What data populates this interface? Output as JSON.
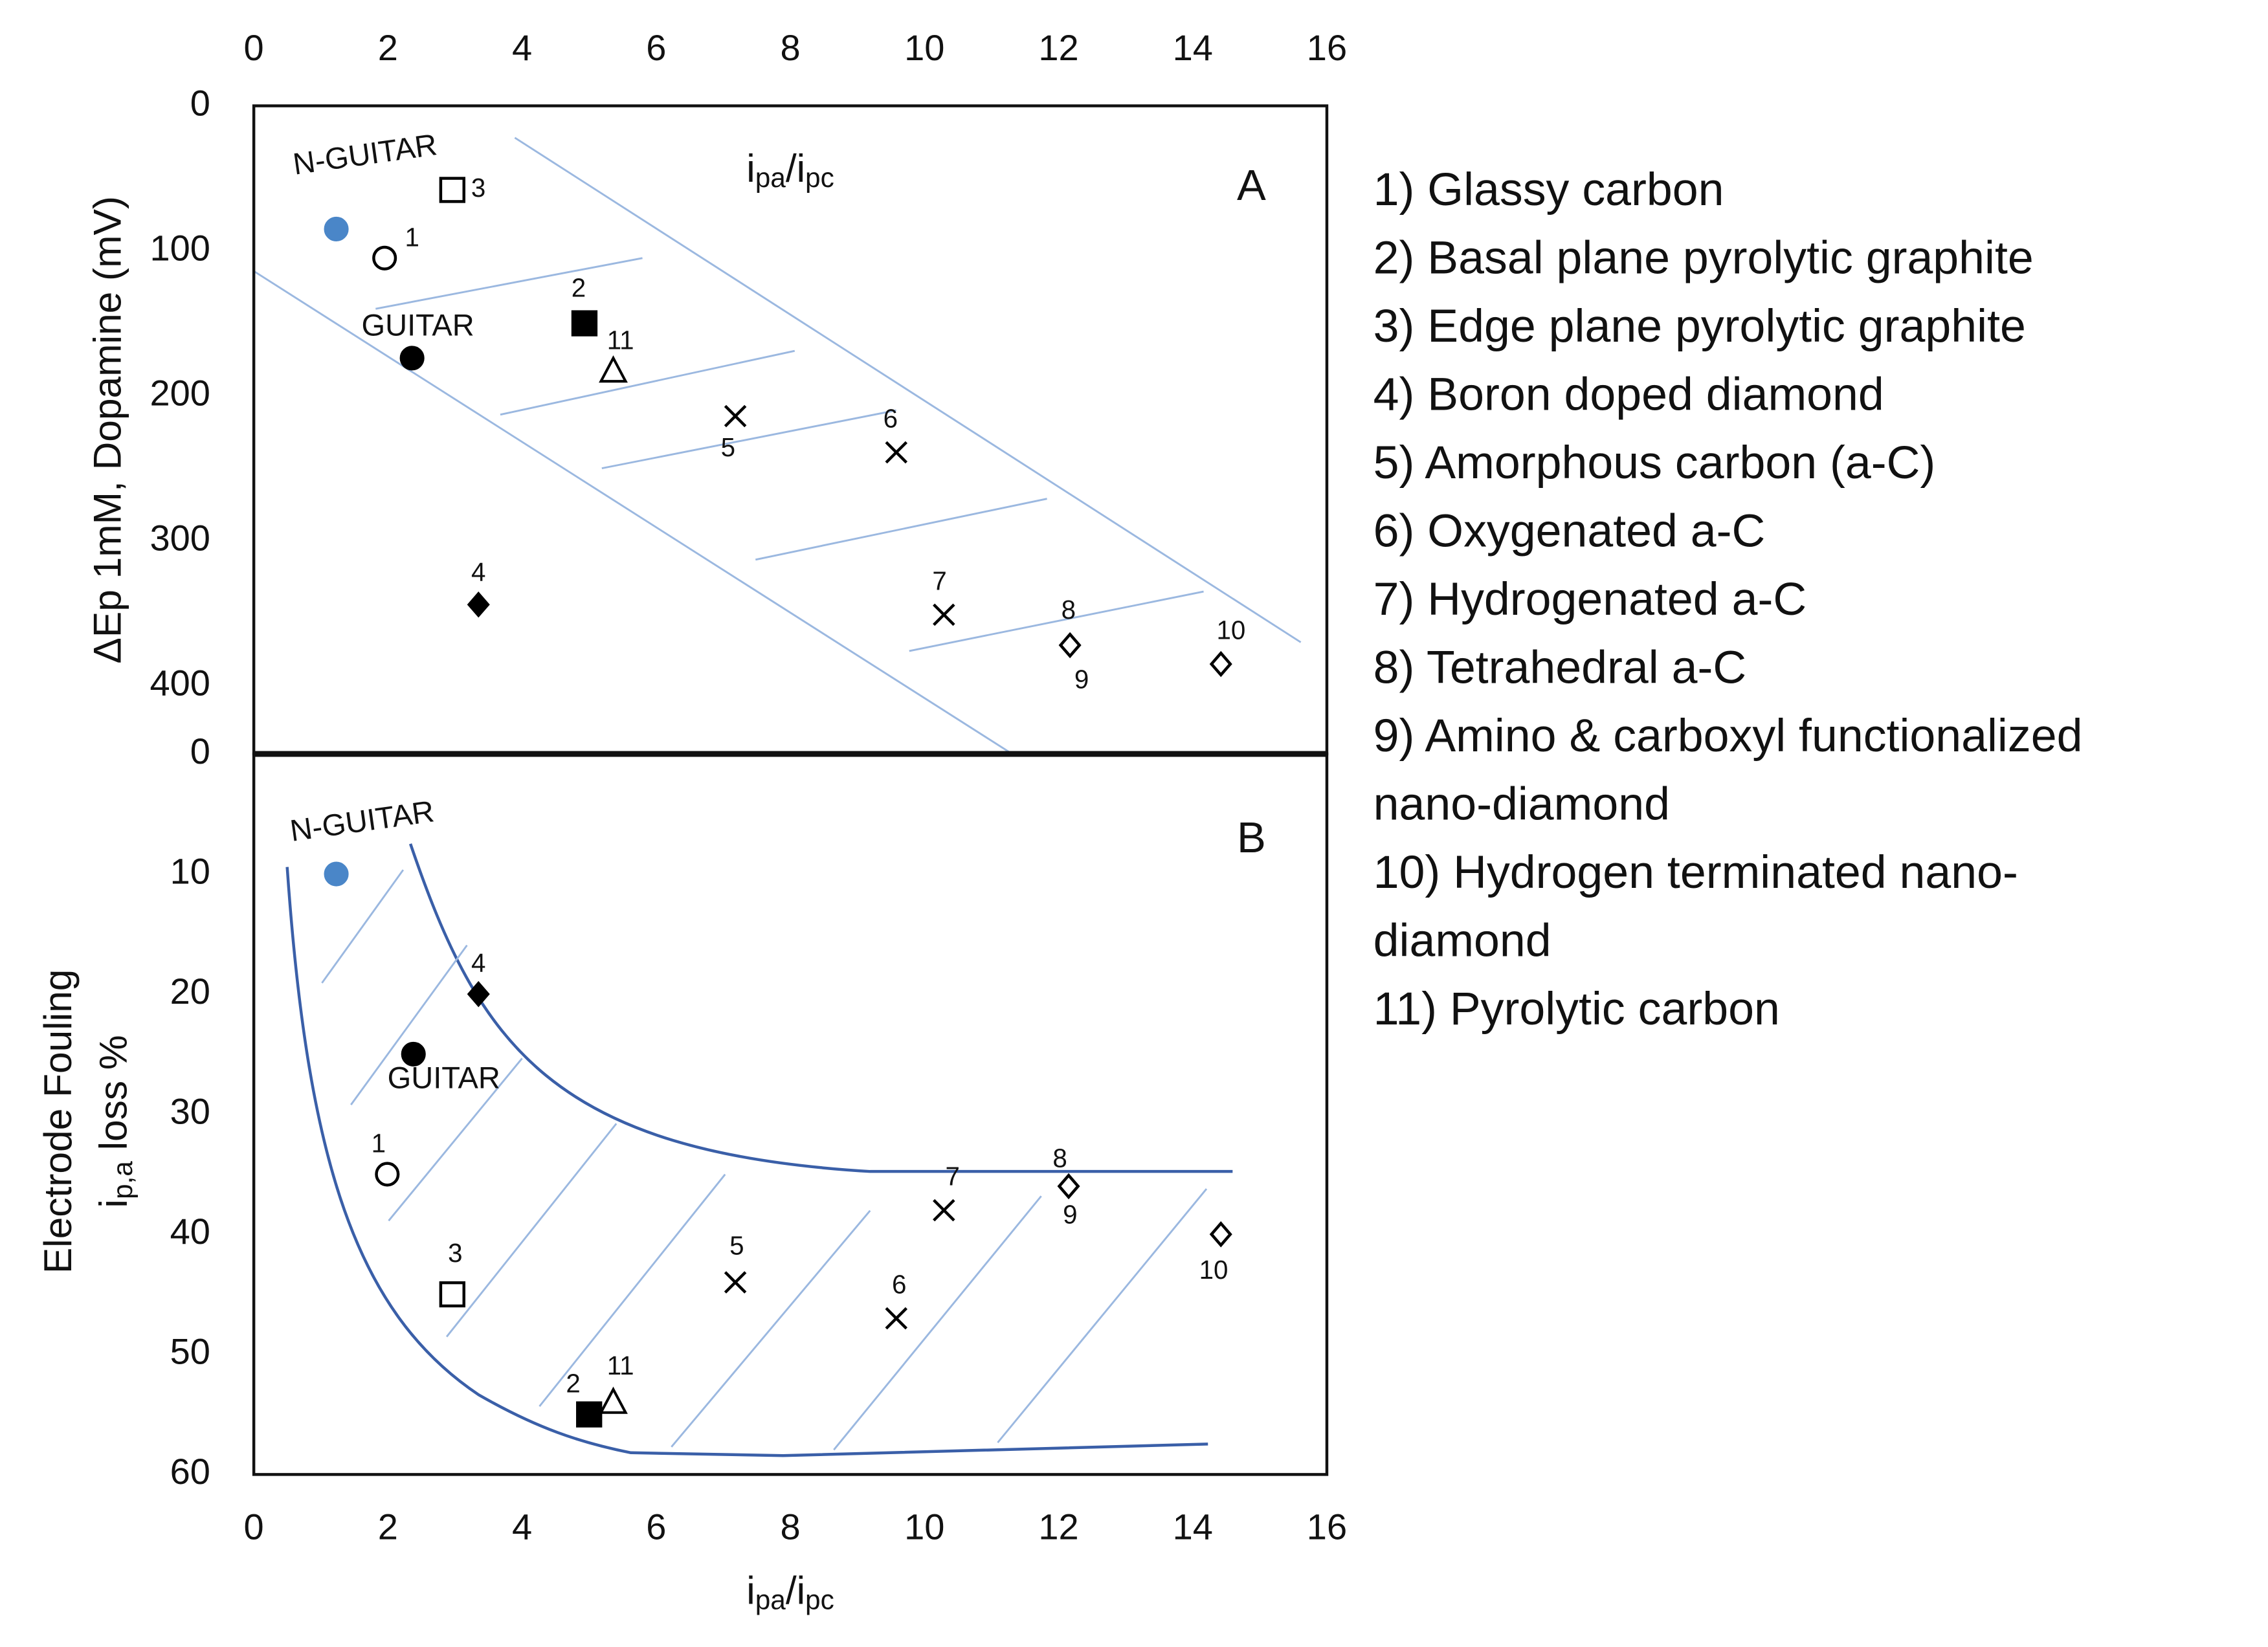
{
  "chart_data": [
    {
      "type": "scatter",
      "panel_label": "A",
      "x_axis_position": "top",
      "xlim": [
        0,
        16
      ],
      "xticks": [
        0,
        2,
        4,
        6,
        8,
        10,
        12,
        14,
        16
      ],
      "ylim": [
        0,
        447
      ],
      "yticks": [
        0,
        100,
        200,
        300,
        400
      ],
      "y_reversed": true,
      "y_label": "ΔEp 1mM, Dopamine (mV)",
      "annotation": [
        "i",
        "pa",
        "/i",
        "pc"
      ],
      "series": [
        {
          "labels": [
            "N-GUITAR"
          ],
          "marker": "circle",
          "filled": true,
          "color": "#4a86c8",
          "x": [
            1.23
          ],
          "values": [
            85
          ]
        },
        {
          "labels": [
            "1"
          ],
          "marker": "circle",
          "filled": false,
          "color": "#000000",
          "x": [
            1.95
          ],
          "values": [
            105
          ]
        },
        {
          "labels": [
            "3"
          ],
          "marker": "square",
          "filled": false,
          "color": "#000000",
          "x": [
            2.96
          ],
          "values": [
            58
          ]
        },
        {
          "labels": [
            "GUITAR"
          ],
          "marker": "circle",
          "filled": true,
          "color": "#000000",
          "x": [
            2.36
          ],
          "values": [
            174
          ]
        },
        {
          "labels": [
            "2"
          ],
          "marker": "square",
          "filled": true,
          "color": "#000000",
          "x": [
            4.93
          ],
          "values": [
            150
          ]
        },
        {
          "labels": [
            "11"
          ],
          "marker": "triangle",
          "filled": false,
          "color": "#000000",
          "x": [
            5.36
          ],
          "values": [
            183
          ]
        },
        {
          "labels": [
            "5"
          ],
          "marker": "cross",
          "filled": false,
          "color": "#000000",
          "x": [
            7.18
          ],
          "values": [
            214
          ]
        },
        {
          "labels": [
            "6"
          ],
          "marker": "cross",
          "filled": false,
          "color": "#000000",
          "x": [
            9.58
          ],
          "values": [
            239
          ]
        },
        {
          "labels": [
            "4"
          ],
          "marker": "diamond",
          "filled": true,
          "color": "#000000",
          "x": [
            3.35
          ],
          "values": [
            344
          ]
        },
        {
          "labels": [
            "7"
          ],
          "marker": "cross",
          "filled": false,
          "color": "#000000",
          "x": [
            10.29
          ],
          "values": [
            351
          ]
        },
        {
          "labels": [
            "8",
            "9"
          ],
          "marker": "diamond",
          "filled": false,
          "color": "#000000",
          "x": [
            12.17
          ],
          "values": [
            372
          ]
        },
        {
          "labels": [
            "10"
          ],
          "marker": "diamond",
          "filled": false,
          "color": "#000000",
          "x": [
            14.42
          ],
          "values": [
            385
          ]
        }
      ]
    },
    {
      "type": "scatter",
      "panel_label": "B",
      "x_axis_position": "bottom",
      "xlim": [
        0,
        16
      ],
      "xticks": [
        0,
        2,
        4,
        6,
        8,
        10,
        12,
        14,
        16
      ],
      "ylim": [
        0,
        60
      ],
      "yticks": [
        0,
        10,
        20,
        30,
        40,
        50,
        60
      ],
      "y_reversed": true,
      "y_label": [
        "Electrode Fouling",
        "i",
        "p,a",
        " loss %"
      ],
      "x_label": [
        "i",
        "pa",
        "/i",
        "pc"
      ],
      "series": [
        {
          "labels": [
            "N-GUITAR"
          ],
          "marker": "circle",
          "filled": true,
          "color": "#4a86c8",
          "x": [
            1.23
          ],
          "values": [
            10
          ]
        },
        {
          "labels": [
            "GUITAR"
          ],
          "marker": "circle",
          "filled": true,
          "color": "#000000",
          "x": [
            2.38
          ],
          "values": [
            25
          ]
        },
        {
          "labels": [
            "4"
          ],
          "marker": "diamond",
          "filled": true,
          "color": "#000000",
          "x": [
            3.35
          ],
          "values": [
            20
          ]
        },
        {
          "labels": [
            "1"
          ],
          "marker": "circle",
          "filled": false,
          "color": "#000000",
          "x": [
            1.99
          ],
          "values": [
            35
          ]
        },
        {
          "labels": [
            "3"
          ],
          "marker": "square",
          "filled": false,
          "color": "#000000",
          "x": [
            2.96
          ],
          "values": [
            45
          ]
        },
        {
          "labels": [
            "2"
          ],
          "marker": "square",
          "filled": true,
          "color": "#000000",
          "x": [
            5.0
          ],
          "values": [
            55
          ]
        },
        {
          "labels": [
            "11"
          ],
          "marker": "triangle",
          "filled": false,
          "color": "#000000",
          "x": [
            5.36
          ],
          "values": [
            54
          ]
        },
        {
          "labels": [
            "5"
          ],
          "marker": "cross",
          "filled": false,
          "color": "#000000",
          "x": [
            7.18
          ],
          "values": [
            44
          ]
        },
        {
          "labels": [
            "6"
          ],
          "marker": "cross",
          "filled": false,
          "color": "#000000",
          "x": [
            9.58
          ],
          "values": [
            47
          ]
        },
        {
          "labels": [
            "7"
          ],
          "marker": "cross",
          "filled": false,
          "color": "#000000",
          "x": [
            10.29
          ],
          "values": [
            38
          ]
        },
        {
          "labels": [
            "8",
            "9"
          ],
          "marker": "diamond",
          "filled": false,
          "color": "#000000",
          "x": [
            12.15
          ],
          "values": [
            36
          ]
        },
        {
          "labels": [
            "10"
          ],
          "marker": "diamond",
          "filled": false,
          "color": "#000000",
          "x": [
            14.42
          ],
          "values": [
            40
          ]
        }
      ]
    }
  ],
  "legend": [
    "1) Glassy carbon",
    "2) Basal plane pyrolytic graphite",
    "3) Edge plane pyrolytic graphite",
    "4) Boron doped diamond",
    "5) Amorphous carbon (a-C)",
    "6) Oxygenated a-C",
    "7) Hydrogenated a-C",
    "8) Tetrahedral a-C",
    "9) Amino & carboxyl functionalized",
    "nano-diamond",
    "10) Hydrogen terminated nano-",
    "diamond",
    "11) Pyrolytic carbon"
  ]
}
